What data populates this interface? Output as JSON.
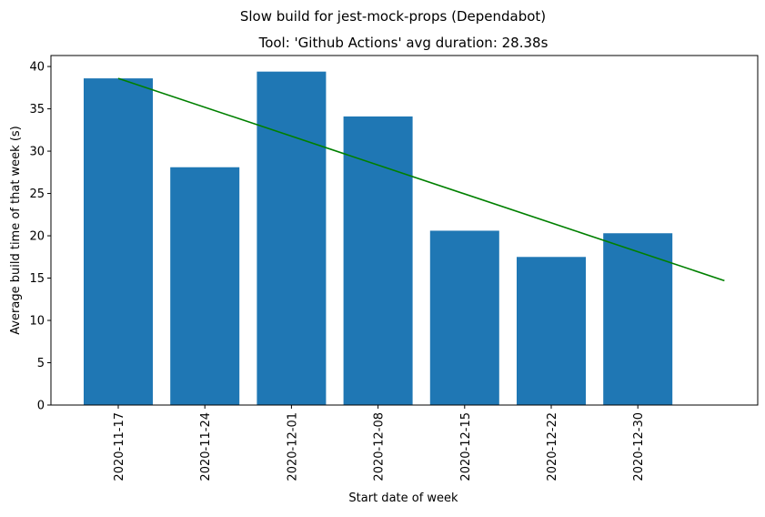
{
  "chart_data": {
    "type": "bar",
    "suptitle": "Slow build for jest-mock-props (Dependabot)",
    "title": "Tool: 'Github Actions' avg duration: 28.38s",
    "xlabel": "Start date of week",
    "ylabel": "Average build time of that week (s)",
    "categories": [
      "2020-11-17",
      "2020-11-24",
      "2020-12-01",
      "2020-12-08",
      "2020-12-15",
      "2020-12-22",
      "2020-12-30"
    ],
    "values": [
      38.6,
      28.1,
      39.4,
      34.1,
      20.6,
      17.5,
      20.3
    ],
    "bar_color": "#1f77b4",
    "trend_color": "#008000",
    "trend": {
      "start": 38.6,
      "end": 14.7
    },
    "ylim": [
      0,
      41.3
    ],
    "yticks": [
      0,
      5,
      10,
      15,
      20,
      25,
      30,
      35,
      40
    ],
    "grid": false,
    "legend": "none"
  }
}
